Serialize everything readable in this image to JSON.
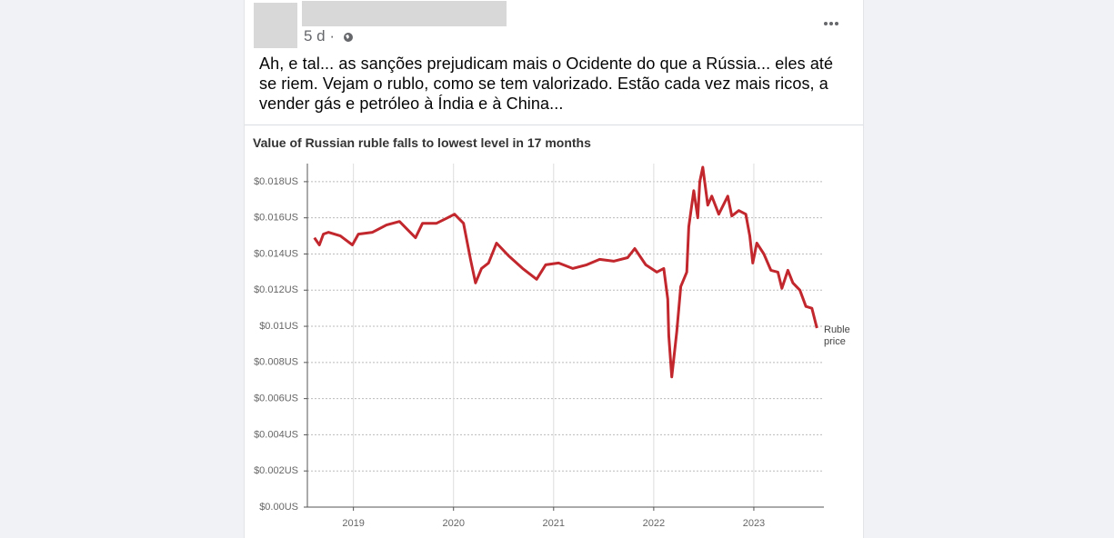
{
  "post": {
    "meta": "5 d ·",
    "text": "Ah, e tal... as sanções prejudicam mais o Ocidente do que a Rússia... eles até se riem. Vejam o rublo, como se tem valorizado. Estão cada vez mais ricos, a vender gás e petróleo à Índia e à China..."
  },
  "chart_data": {
    "type": "line",
    "title": "Value of Russian ruble falls to lowest level in 17 months",
    "x": [
      2018.61,
      2018.66,
      2018.7,
      2018.75,
      2018.87,
      2018.99,
      2019.05,
      2019.19,
      2019.33,
      2019.46,
      2019.62,
      2019.69,
      2019.83,
      2019.94,
      2020.01,
      2020.1,
      2020.17,
      2020.22,
      2020.28,
      2020.35,
      2020.43,
      2020.55,
      2020.69,
      2020.83,
      2020.92,
      2021.05,
      2021.19,
      2021.33,
      2021.46,
      2021.6,
      2021.74,
      2021.81,
      2021.92,
      2022.03,
      2022.1,
      2022.14,
      2022.15,
      2022.18,
      2022.23,
      2022.27,
      2022.33,
      2022.35,
      2022.4,
      2022.44,
      2022.46,
      2022.49,
      2022.54,
      2022.58,
      2022.65,
      2022.74,
      2022.78,
      2022.85,
      2022.92,
      2022.96,
      2022.99,
      2023.03,
      2023.1,
      2023.17,
      2023.24,
      2023.28,
      2023.34,
      2023.39,
      2023.46,
      2023.52,
      2023.58,
      2023.63
    ],
    "series": [
      {
        "name": "Ruble price",
        "color": "#c1272d",
        "values": [
          0.0149,
          0.0145,
          0.0151,
          0.0152,
          0.015,
          0.0145,
          0.0151,
          0.0152,
          0.0156,
          0.0158,
          0.0149,
          0.0157,
          0.0157,
          0.016,
          0.0162,
          0.0157,
          0.0137,
          0.0124,
          0.0132,
          0.0135,
          0.0146,
          0.0139,
          0.0132,
          0.0126,
          0.0134,
          0.0135,
          0.0132,
          0.0134,
          0.0137,
          0.0136,
          0.0138,
          0.0143,
          0.0134,
          0.013,
          0.0132,
          0.0115,
          0.0095,
          0.0072,
          0.0097,
          0.0122,
          0.013,
          0.0155,
          0.0175,
          0.016,
          0.018,
          0.0188,
          0.0167,
          0.0172,
          0.0162,
          0.0172,
          0.0161,
          0.0164,
          0.0162,
          0.015,
          0.0135,
          0.0146,
          0.014,
          0.0131,
          0.013,
          0.0121,
          0.0131,
          0.0124,
          0.012,
          0.0111,
          0.011,
          0.0099
        ]
      }
    ],
    "xlim": [
      2018.54,
      2023.7
    ],
    "xticks": [
      2019,
      2020,
      2021,
      2022,
      2023
    ],
    "ylim": [
      0,
      0.019
    ],
    "yticks": [
      {
        "value": 0,
        "label": "$0.00US"
      },
      {
        "value": 0.002,
        "label": "$0.002US"
      },
      {
        "value": 0.004,
        "label": "$0.004US"
      },
      {
        "value": 0.006,
        "label": "$0.006US"
      },
      {
        "value": 0.008,
        "label": "$0.008US"
      },
      {
        "value": 0.01,
        "label": "$0.01US"
      },
      {
        "value": 0.012,
        "label": "$0.012US"
      },
      {
        "value": 0.014,
        "label": "$0.014US"
      },
      {
        "value": 0.016,
        "label": "$0.016US"
      },
      {
        "value": 0.018,
        "label": "$0.018US"
      }
    ],
    "grid": true
  }
}
